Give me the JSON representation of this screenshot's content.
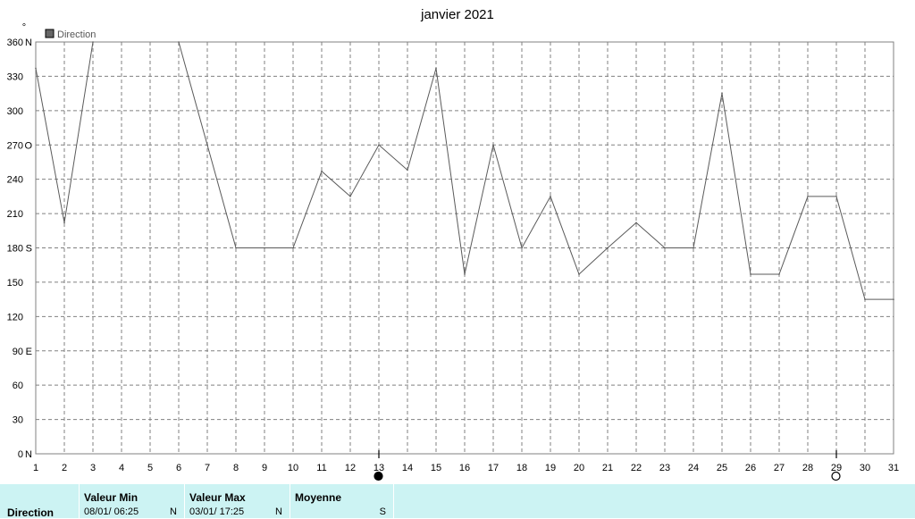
{
  "chart_data": {
    "type": "line",
    "title": "janvier 2021",
    "degree_symbol": "°",
    "series": [
      {
        "name": "Direction",
        "x": [
          1,
          2,
          3,
          4,
          5,
          6,
          7,
          8,
          9,
          10,
          11,
          12,
          13,
          14,
          15,
          16,
          17,
          18,
          19,
          20,
          21,
          22,
          23,
          24,
          25,
          26,
          27,
          28,
          29,
          30,
          31
        ],
        "values": [
          337,
          202,
          360,
          null,
          null,
          360,
          270,
          180,
          180,
          180,
          247,
          225,
          270,
          248,
          337,
          157,
          270,
          180,
          225,
          157,
          180,
          202,
          180,
          180,
          315,
          157,
          157,
          225,
          225,
          135,
          135
        ]
      }
    ],
    "x_ticks": [
      "1",
      "2",
      "3",
      "4",
      "5",
      "6",
      "7",
      "8",
      "9",
      "10",
      "11",
      "12",
      "13",
      "14",
      "15",
      "16",
      "17",
      "18",
      "19",
      "20",
      "21",
      "22",
      "23",
      "24",
      "25",
      "26",
      "27",
      "28",
      "29",
      "30",
      "31"
    ],
    "y_ticks": [
      {
        "value": 0,
        "label": "0",
        "dir": "N"
      },
      {
        "value": 30,
        "label": "30",
        "dir": ""
      },
      {
        "value": 60,
        "label": "60",
        "dir": ""
      },
      {
        "value": 90,
        "label": "90",
        "dir": "E"
      },
      {
        "value": 120,
        "label": "120",
        "dir": ""
      },
      {
        "value": 150,
        "label": "150",
        "dir": ""
      },
      {
        "value": 180,
        "label": "180",
        "dir": "S"
      },
      {
        "value": 210,
        "label": "210",
        "dir": ""
      },
      {
        "value": 240,
        "label": "240",
        "dir": ""
      },
      {
        "value": 270,
        "label": "270",
        "dir": "O"
      },
      {
        "value": 300,
        "label": "300",
        "dir": ""
      },
      {
        "value": 330,
        "label": "330",
        "dir": ""
      },
      {
        "value": 360,
        "label": "360",
        "dir": "N"
      }
    ],
    "ylim": [
      0,
      360
    ],
    "xlim": [
      1,
      31
    ],
    "grid": true,
    "legend_position": "top-left",
    "moon_phases": [
      {
        "day": 13,
        "phase": "new-moon"
      },
      {
        "day": 29,
        "phase": "full-moon"
      }
    ],
    "colors": {
      "line": "#5a5a5a",
      "grid": "#808080",
      "axis": "#808080",
      "legend_box": "#666666"
    }
  },
  "summary": {
    "series_label": "Direction",
    "min_header": "Valeur Min",
    "min_value": "08/01/  06:25",
    "min_dir": "N",
    "max_header": "Valeur Max",
    "max_value": "03/01/  17:25",
    "max_dir": "N",
    "avg_header": "Moyenne",
    "avg_dir": "S"
  },
  "colors": {
    "summary_bg": "#ccf3f3"
  }
}
